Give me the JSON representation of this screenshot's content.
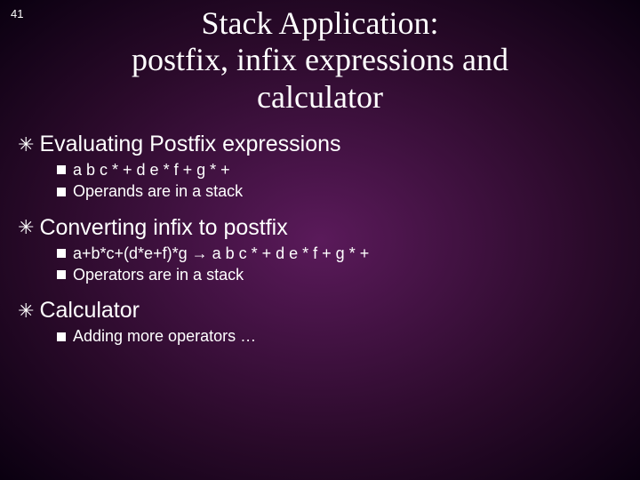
{
  "slide": {
    "number": "41",
    "title_line1": "Stack Application:",
    "title_line2": "postfix, infix expressions and",
    "title_line3": "calculator"
  },
  "bullets": [
    {
      "label": "Evaluating Postfix expressions",
      "children": [
        "a b c * + d e * f + g * +",
        "Operands are in a stack"
      ]
    },
    {
      "label": "Converting infix to postfix",
      "children": [
        "a+b*c+(d*e+f)*g → a b c * + d e * f + g * +",
        "Operators are in a stack"
      ]
    },
    {
      "label": "Calculator",
      "children": [
        "Adding more operators …"
      ]
    }
  ],
  "style": {
    "title_color": "#ffffff",
    "text_color": "#ffffff",
    "background_center": "#5a1a5a",
    "background_edge": "#0a0010",
    "title_fontfamily": "Times New Roman",
    "body_fontfamily": "Arial",
    "title_fontsize": 36,
    "level1_fontsize": 25,
    "level2_fontsize": 18
  }
}
